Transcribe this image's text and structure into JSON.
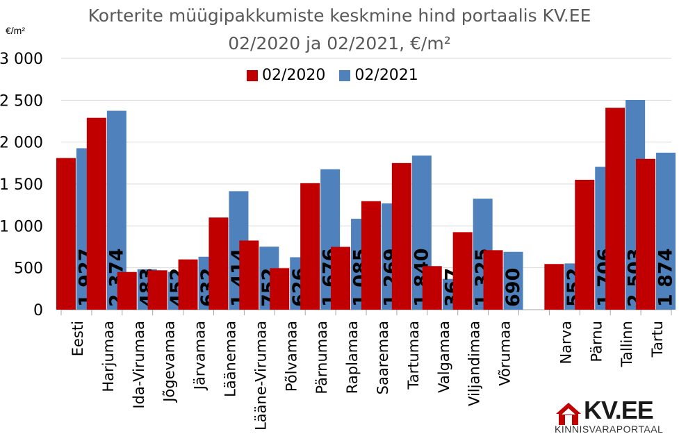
{
  "title_line1": "Korterite müügipakkumiste keskmine hind portaalis KV.EE",
  "title_line2": "02/2020 ja 02/2021, €/m²",
  "ylabel": "€/m²",
  "logo": {
    "text": "KV.EE",
    "subtitle": "KINNISVARAPORTAAL"
  },
  "colors": {
    "series2020": "#C00000",
    "series2021": "#4F81BD"
  },
  "chart_data": {
    "type": "bar",
    "categories": [
      "Eesti",
      "Harjumaa",
      "Ida-Virumaa",
      "Jõgevamaa",
      "Järvamaa",
      "Läänemaa",
      "Lääne-Virumaa",
      "Põlvamaa",
      "Pärnumaa",
      "Raplamaa",
      "Saaremaa",
      "Tartumaa",
      "Valgamaa",
      "Viljandimaa",
      "Võrumaa",
      "",
      "Narva",
      "Pärnu",
      "Tallinn",
      "Tartu"
    ],
    "series": [
      {
        "name": "02/2020",
        "values": [
          1810,
          2290,
          450,
          470,
          600,
          1100,
          825,
          495,
          1510,
          750,
          1295,
          1750,
          520,
          925,
          710,
          null,
          545,
          1550,
          2410,
          1800
        ]
      },
      {
        "name": "02/2021",
        "values": [
          1927,
          2374,
          483,
          452,
          632,
          1414,
          752,
          626,
          1676,
          1085,
          1269,
          1840,
          367,
          1325,
          690,
          null,
          552,
          1706,
          2503,
          1874
        ]
      }
    ],
    "data_labels": [
      "1 927",
      "2 374",
      "483",
      "452",
      "632",
      "1 414",
      "752",
      "626",
      "1 676",
      "1 085",
      "1 269",
      "1 840",
      "367",
      "1 325",
      "690",
      "",
      "552",
      "1 706",
      "2 503",
      "1 874"
    ],
    "yticks": [
      "0",
      "500",
      "1 000",
      "1 500",
      "2 000",
      "2 500",
      "3 000"
    ],
    "ylim": [
      0,
      3000
    ],
    "grid": true,
    "legend_position": "top-center"
  }
}
